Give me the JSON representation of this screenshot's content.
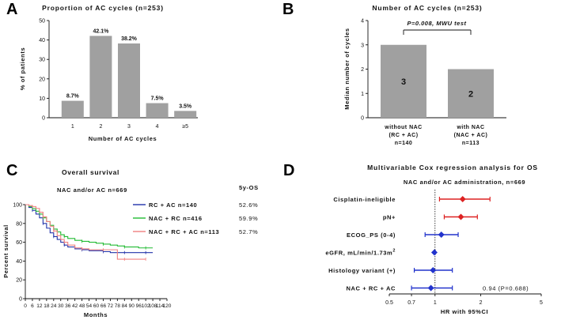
{
  "chart_data": [
    {
      "panel": "A",
      "type": "bar",
      "title": "Proportion of AC cycles (n=253)",
      "xlabel": "Number of AC cycles",
      "ylabel": "% of patients",
      "categories": [
        "1",
        "2",
        "3",
        "4",
        "≥5"
      ],
      "values": [
        8.7,
        42.1,
        38.2,
        7.5,
        3.5
      ],
      "value_labels": [
        "8.7%",
        "42.1%",
        "38.2%",
        "7.5%",
        "3.5%"
      ],
      "ylim": [
        0,
        50
      ],
      "yticks": [
        "0",
        "10",
        "20",
        "30",
        "40",
        "50"
      ],
      "color": "#a0a0a0"
    },
    {
      "panel": "B",
      "type": "bar",
      "title": "Number of AC cycles (n=253)",
      "ylabel": "Median number of cycles",
      "categories": [
        [
          "without NAC",
          "(RC + AC)",
          "n=140"
        ],
        [
          "with NAC",
          "(NAC + AC)",
          "n=113"
        ]
      ],
      "values": [
        3,
        2
      ],
      "value_labels": [
        "3",
        "2"
      ],
      "ylim": [
        0,
        4
      ],
      "yticks": [
        "0",
        "1",
        "2",
        "3",
        "4"
      ],
      "annotation": "P=0.008, MWU test",
      "color": "#a0a0a0"
    },
    {
      "panel": "C",
      "type": "line",
      "title": "Overall survival",
      "subtitle": "NAC and/or AC n=669",
      "xlabel": "Months",
      "ylabel": "Percent survival",
      "xlim": [
        0,
        120
      ],
      "ylim": [
        0,
        100
      ],
      "xticks": [
        "0",
        "6",
        "12",
        "18",
        "24",
        "30",
        "36",
        "42",
        "48",
        "54",
        "60",
        "66",
        "72",
        "78",
        "84",
        "90",
        "96",
        "102",
        "108",
        "114",
        "120"
      ],
      "yticks": [
        "0",
        "20",
        "40",
        "60",
        "80",
        "100"
      ],
      "legend_header": "5y-OS",
      "series": [
        {
          "name": "RC + AC n=140",
          "os5": "52.6%",
          "color": "#2233aa",
          "x": [
            0,
            3,
            6,
            9,
            12,
            15,
            18,
            21,
            24,
            27,
            30,
            33,
            36,
            42,
            48,
            54,
            60,
            66,
            72,
            78,
            84,
            90,
            96,
            102,
            108
          ],
          "y": [
            100,
            97,
            94,
            90,
            86,
            80,
            75,
            70,
            66,
            63,
            60,
            57,
            55,
            53,
            52,
            51,
            51,
            50,
            49,
            49,
            49,
            49,
            49,
            49,
            49
          ]
        },
        {
          "name": "NAC + RC n=416",
          "os5": "59.9%",
          "color": "#22bb33",
          "x": [
            0,
            3,
            6,
            9,
            12,
            15,
            18,
            21,
            24,
            27,
            30,
            33,
            36,
            42,
            48,
            54,
            60,
            66,
            72,
            78,
            84,
            90,
            96,
            102,
            108
          ],
          "y": [
            100,
            98,
            96,
            93,
            90,
            86,
            82,
            78,
            74,
            71,
            68,
            66,
            64,
            62,
            61,
            60,
            59,
            58,
            57,
            56,
            55,
            55,
            54,
            54,
            54
          ]
        },
        {
          "name": "NAC + RC + AC n=113",
          "os5": "52.7%",
          "color": "#f08080",
          "x": [
            0,
            3,
            6,
            9,
            12,
            15,
            18,
            21,
            24,
            27,
            30,
            33,
            36,
            42,
            48,
            54,
            60,
            66,
            72,
            78,
            84,
            90,
            96,
            102
          ],
          "y": [
            100,
            99,
            98,
            96,
            92,
            87,
            82,
            77,
            72,
            67,
            63,
            60,
            57,
            54,
            53,
            52,
            52,
            52,
            52,
            42,
            42,
            42,
            42,
            42
          ]
        }
      ]
    },
    {
      "panel": "D",
      "type": "forest",
      "title": "Multivariable Cox regression analysis for OS",
      "subtitle": "NAC and/or AC administration, n=669",
      "xlabel": "HR with 95%CI",
      "xlim": [
        0.5,
        5
      ],
      "xscale": "log",
      "xticks": [
        "0.5",
        "0.7",
        "1",
        "2",
        "5"
      ],
      "rows": [
        {
          "label": "Cisplatin-ineligible",
          "hr": 1.52,
          "lo": 1.07,
          "hi": 2.3,
          "color": "#dd2222"
        },
        {
          "label": "pN+",
          "hr": 1.48,
          "lo": 1.15,
          "hi": 1.9,
          "color": "#dd2222"
        },
        {
          "label": "ECOG_PS (0-4)",
          "hr": 1.1,
          "lo": 0.86,
          "hi": 1.42,
          "color": "#2233cc"
        },
        {
          "label": "eGFR, mL/min/1.73m",
          "label_sup": "2",
          "hr": 0.99,
          "lo": 0.985,
          "hi": 1.005,
          "color": "#2233cc"
        },
        {
          "label": "Histology variant (+)",
          "hr": 0.97,
          "lo": 0.73,
          "hi": 1.3,
          "color": "#2233cc"
        },
        {
          "label": "NAC + RC + AC",
          "hr": 0.94,
          "lo": 0.7,
          "hi": 1.3,
          "color": "#2233cc",
          "annotation": "0.94 (P=0.688)"
        }
      ]
    }
  ]
}
